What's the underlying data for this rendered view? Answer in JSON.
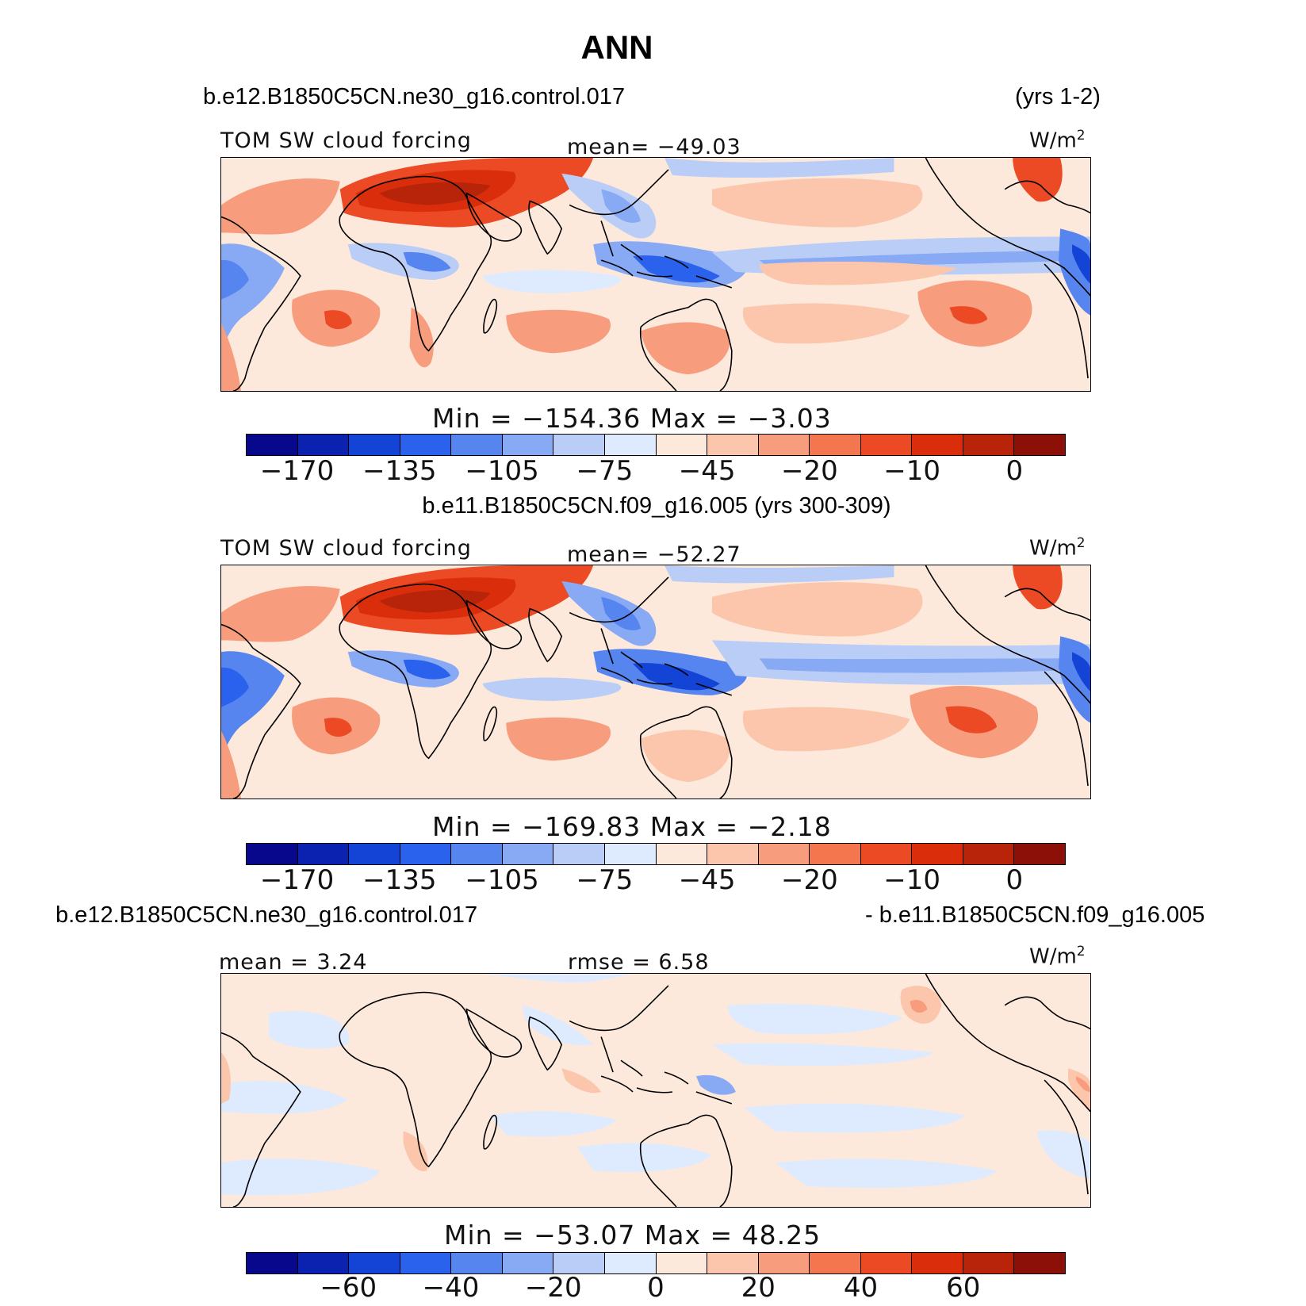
{
  "title": "ANN",
  "colors": [
    "#08088c",
    "#0b22b0",
    "#1444d6",
    "#2a62ee",
    "#5685ef",
    "#88a9f3",
    "#b9cdf7",
    "#deeafd",
    "#fde9dc",
    "#fbc6ac",
    "#f79d7d",
    "#f3764f",
    "#eb4a24",
    "#d92d0c",
    "#b72409",
    "#8c1007"
  ],
  "panels": [
    {
      "case_left": "b.e12.B1850C5CN.ne30_g16.control.017",
      "case_right": "(yrs 1-2)",
      "var_label": "TOM SW cloud forcing",
      "stat": "mean= −49.03",
      "units": "W/m",
      "units_sup": "2",
      "minmax": "Min = −154.36 Max =  −3.03",
      "ticks": [
        "−170",
        "−135",
        "−105",
        "−75",
        "−45",
        "−20",
        "−10",
        "0"
      ]
    },
    {
      "case_center": "b.e11.B1850C5CN.f09_g16.005 (yrs 300-309)",
      "var_label": "TOM SW cloud forcing",
      "stat": "mean= −52.27",
      "units": "W/m",
      "units_sup": "2",
      "minmax": "Min = −169.83 Max =  −2.18",
      "ticks": [
        "−170",
        "−135",
        "−105",
        "−75",
        "−45",
        "−20",
        "−10",
        "0"
      ]
    },
    {
      "case_left": "b.e12.B1850C5CN.ne30_g16.control.017",
      "case_right": "- b.e11.B1850C5CN.f09_g16.005",
      "stat_left": "mean =    3.24",
      "stat_mid": "rmse =    6.58",
      "units": "W/m",
      "units_sup": "2",
      "minmax": "Min = −53.07 Max =  48.25",
      "ticks": [
        "−60",
        "−40",
        "−20",
        "0",
        "20",
        "40",
        "60"
      ]
    }
  ]
}
